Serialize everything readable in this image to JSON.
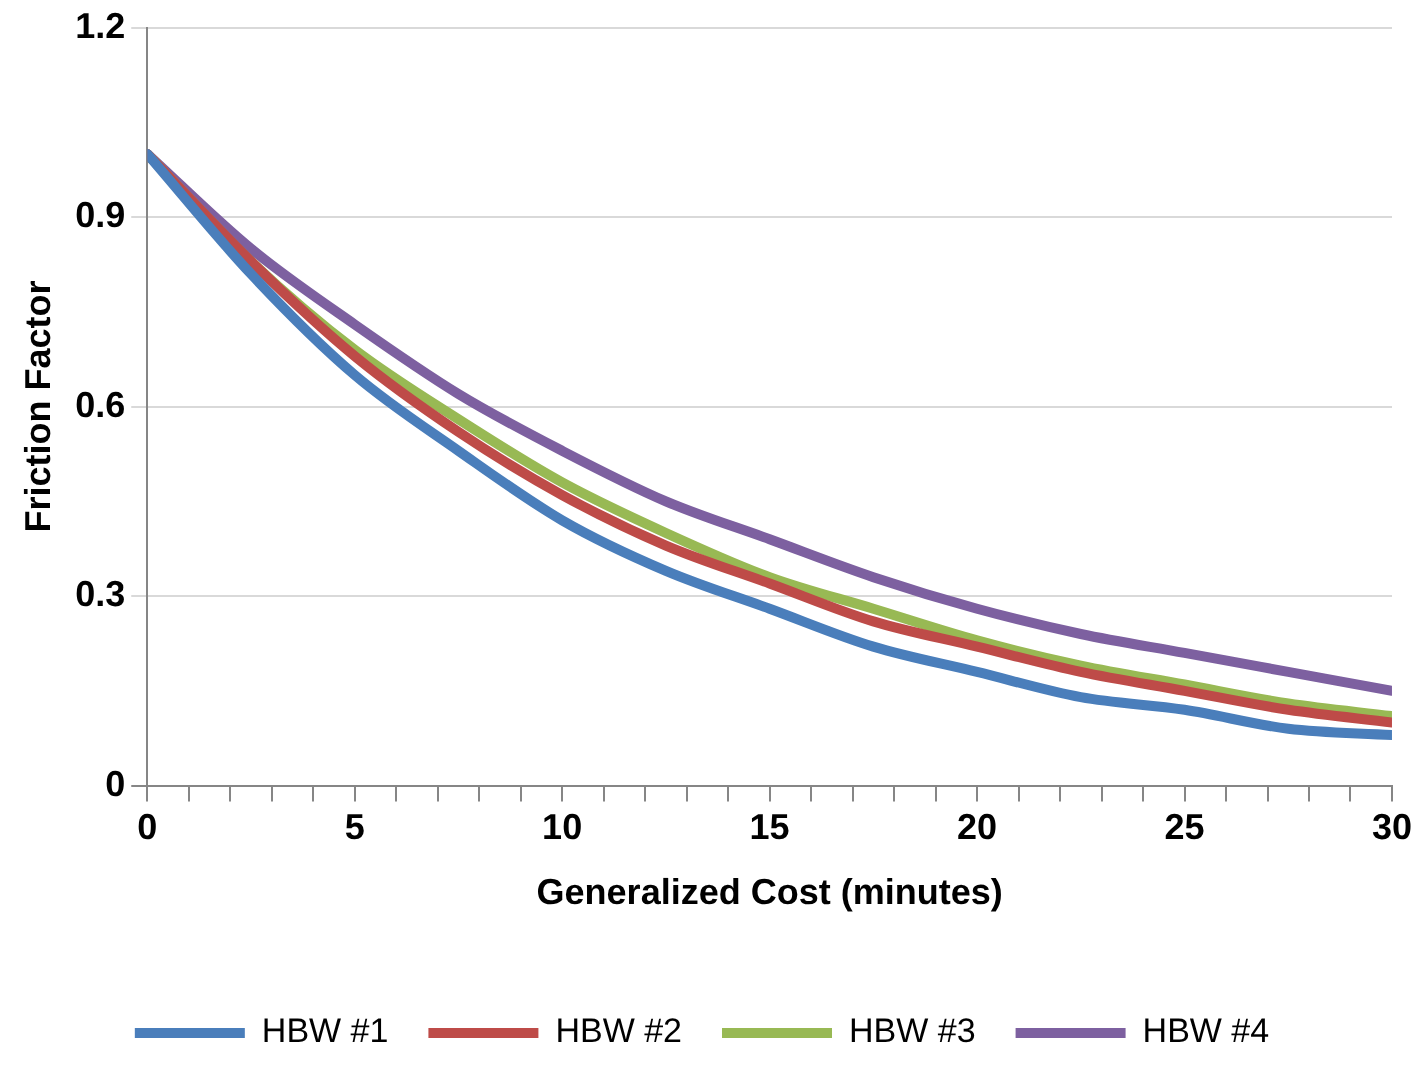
{
  "chart_data": {
    "type": "line",
    "xlabel": "Generalized Cost (minutes)",
    "ylabel": "Friction Factor",
    "x": [
      0,
      2.5,
      5,
      7.5,
      10,
      12.5,
      15,
      17.5,
      20,
      22.5,
      25,
      27.5,
      30
    ],
    "series": [
      {
        "name": "HBW #1",
        "color": "#4a7ebb",
        "values": [
          1,
          0.81,
          0.65,
          0.53,
          0.42,
          0.34,
          0.28,
          0.22,
          0.18,
          0.14,
          0.12,
          0.09,
          0.08
        ]
      },
      {
        "name": "HBW #2",
        "color": "#be4b48",
        "values": [
          1,
          0.83,
          0.68,
          0.56,
          0.46,
          0.38,
          0.32,
          0.26,
          0.22,
          0.18,
          0.15,
          0.12,
          0.1
        ]
      },
      {
        "name": "HBW #3",
        "color": "#98b954",
        "values": [
          1,
          0.83,
          0.69,
          0.58,
          0.48,
          0.4,
          0.33,
          0.28,
          0.23,
          0.19,
          0.16,
          0.13,
          0.11
        ]
      },
      {
        "name": "HBW #4",
        "color": "#7d60a0",
        "values": [
          1,
          0.85,
          0.73,
          0.62,
          0.53,
          0.45,
          0.39,
          0.33,
          0.28,
          0.24,
          0.21,
          0.18,
          0.15
        ]
      }
    ],
    "xlim": [
      0,
      30
    ],
    "xticks": [
      0,
      {
        "value": 1,
        "label": null
      },
      {
        "value": 2,
        "label": null
      },
      {
        "value": 3,
        "label": null
      },
      {
        "value": 4,
        "label": null
      },
      5,
      {
        "value": 6,
        "label": null
      },
      {
        "value": 7,
        "label": null
      },
      {
        "value": 8,
        "label": null
      },
      {
        "value": 9,
        "label": null
      },
      10,
      {
        "value": 11,
        "label": null
      },
      {
        "value": 12,
        "label": null
      },
      {
        "value": 13,
        "label": null
      },
      {
        "value": 14,
        "label": null
      },
      15,
      {
        "value": 16,
        "label": null
      },
      {
        "value": 17,
        "label": null
      },
      {
        "value": 18,
        "label": null
      },
      {
        "value": 19,
        "label": null
      },
      20,
      {
        "value": 21,
        "label": null
      },
      {
        "value": 22,
        "label": null
      },
      {
        "value": 23,
        "label": null
      },
      {
        "value": 24,
        "label": null
      },
      25,
      {
        "value": 26,
        "label": null
      },
      {
        "value": 27,
        "label": null
      },
      {
        "value": 28,
        "label": null
      },
      {
        "value": 29,
        "label": null
      },
      30
    ],
    "ylim": [
      0,
      1.2
    ],
    "yticks": [
      0,
      0.3,
      0.6,
      0.9,
      1.2
    ],
    "grid": "y",
    "legend": "bottom",
    "marker": "none",
    "line_style": "solid"
  }
}
